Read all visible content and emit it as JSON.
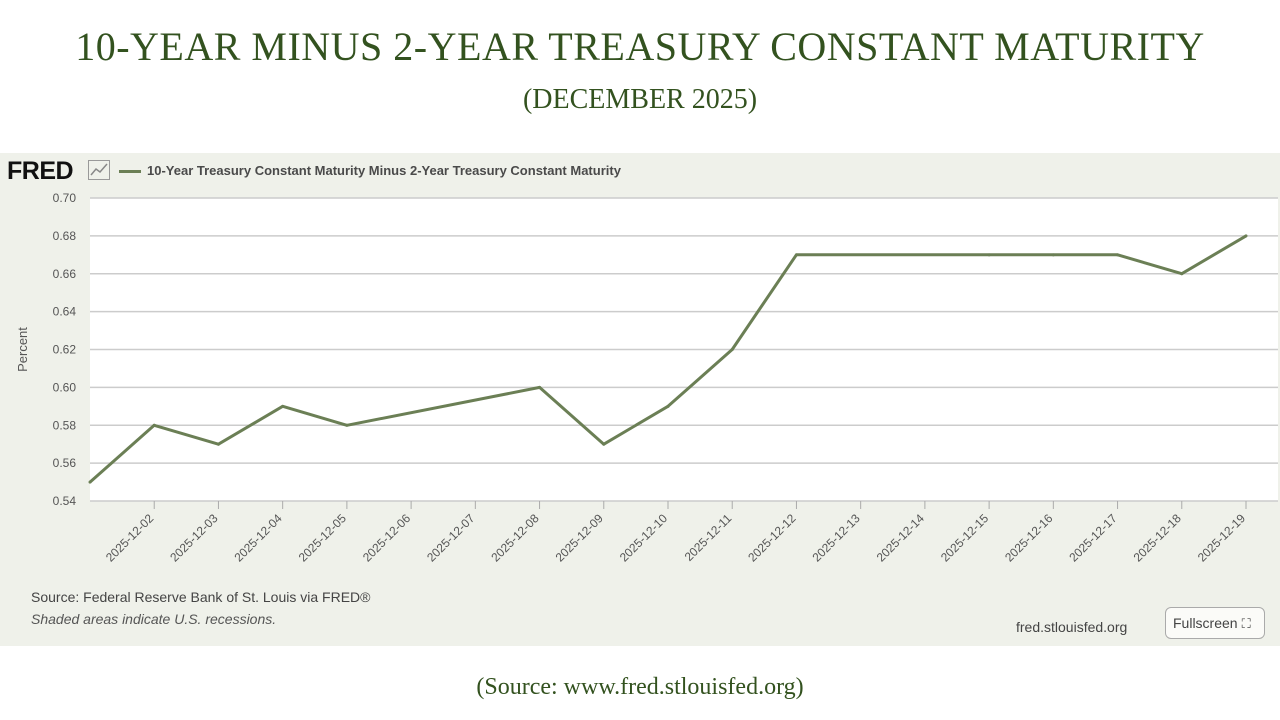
{
  "header": {
    "title": "10-YEAR MINUS 2-YEAR TREASURY CONSTANT MATURITY",
    "subtitle": "(DECEMBER 2025)"
  },
  "fred": {
    "logo": "FRED",
    "legend_label": "10-Year Treasury Constant Maturity Minus 2-Year Treasury Constant Maturity",
    "source": "Source: Federal Reserve Bank of St. Louis via FRED®",
    "recession_note": "Shaded areas indicate U.S. recessions.",
    "url": "fred.stlouisfed.org",
    "fullscreen_label": "Fullscreen",
    "fullscreen_icon": "⛶",
    "icons": {
      "chart": "line-chart-icon",
      "fullscreen": "expand-icon"
    }
  },
  "footer": {
    "source": "(Source: www.fred.stlouisfed.org)"
  },
  "colors": {
    "title": "#33521f",
    "series": "#6b7f55",
    "panel": "#eff1ea",
    "grid": "#cccccc"
  },
  "chart_data": {
    "type": "line",
    "xlabel": "",
    "ylabel": "Percent",
    "ylim": [
      0.54,
      0.7
    ],
    "yticks": [
      0.54,
      0.56,
      0.58,
      0.6,
      0.62,
      0.64,
      0.66,
      0.68,
      0.7
    ],
    "xlim": [
      "2025-12-01",
      "2025-12-19"
    ],
    "xticks": [
      "2025-12-02",
      "2025-12-03",
      "2025-12-04",
      "2025-12-05",
      "2025-12-06",
      "2025-12-07",
      "2025-12-08",
      "2025-12-09",
      "2025-12-10",
      "2025-12-11",
      "2025-12-12",
      "2025-12-13",
      "2025-12-14",
      "2025-12-15",
      "2025-12-16",
      "2025-12-17",
      "2025-12-18",
      "2025-12-19"
    ],
    "grid": true,
    "legend": "top-left",
    "series": [
      {
        "name": "10-Year Treasury Constant Maturity Minus 2-Year Treasury Constant Maturity",
        "x": [
          "2025-12-01",
          "2025-12-02",
          "2025-12-03",
          "2025-12-04",
          "2025-12-05",
          "2025-12-08",
          "2025-12-09",
          "2025-12-10",
          "2025-12-11",
          "2025-12-12",
          "2025-12-15",
          "2025-12-16",
          "2025-12-17",
          "2025-12-18",
          "2025-12-19"
        ],
        "values": [
          0.55,
          0.58,
          0.57,
          0.59,
          0.58,
          0.6,
          0.57,
          0.59,
          0.62,
          0.67,
          0.67,
          0.67,
          0.67,
          0.66,
          0.68
        ]
      }
    ]
  }
}
